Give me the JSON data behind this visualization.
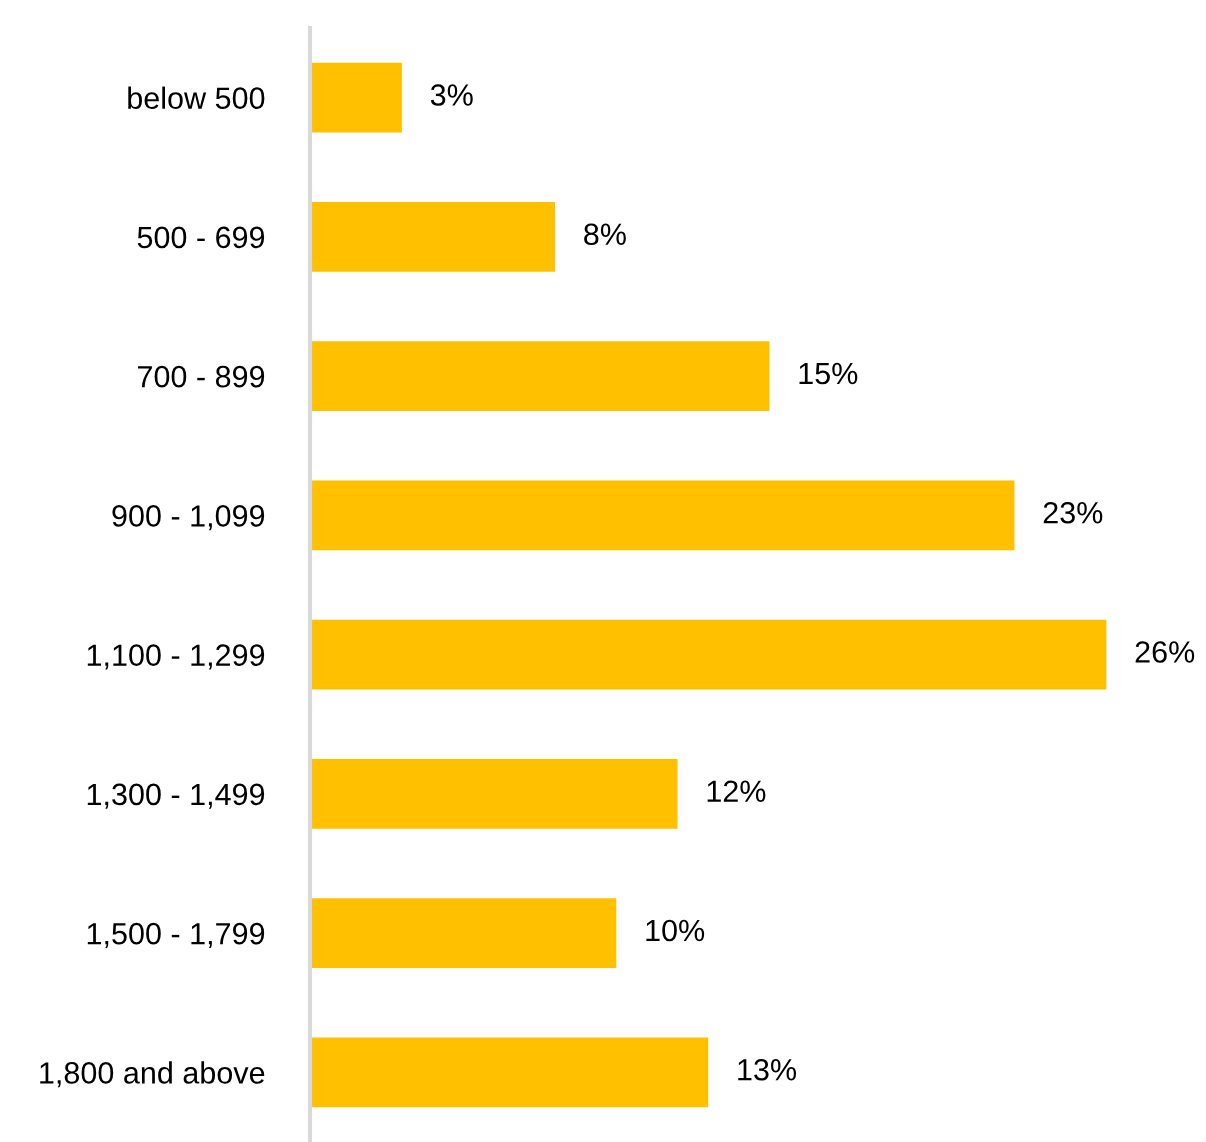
{
  "chart_data": {
    "type": "bar",
    "orientation": "horizontal",
    "categories": [
      "below 500",
      "500 - 699",
      "700 - 899",
      "900 - 1,099",
      "1,100 - 1,299",
      "1,300 - 1,499",
      "1,500 - 1,799",
      "1,800 and above"
    ],
    "values": [
      3,
      8,
      15,
      23,
      26,
      12,
      10,
      13
    ],
    "value_labels": [
      "3%",
      "8%",
      "15%",
      "23%",
      "26%",
      "12%",
      "10%",
      "13%"
    ],
    "color": "#ffc000",
    "grid": false,
    "legend": false
  }
}
